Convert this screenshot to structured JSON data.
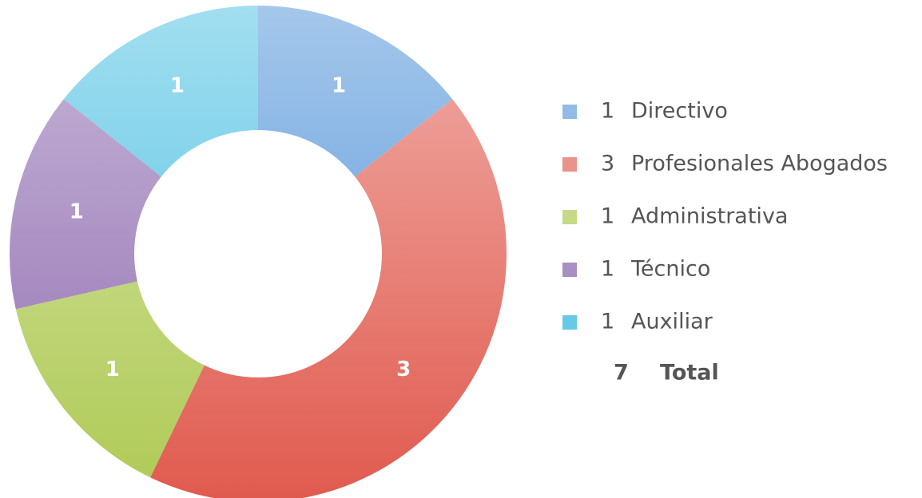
{
  "chart_data": {
    "type": "donut",
    "categories": [
      "Directivo",
      "Profesionales Abogados",
      "Administrativa",
      "Técnico",
      "Auxiliar"
    ],
    "values": [
      1,
      3,
      1,
      1,
      1
    ],
    "colors": [
      "#4a8fd6",
      "#e05a4e",
      "#afca55",
      "#8f6cb0",
      "#45bde0"
    ],
    "total": {
      "value": 7,
      "label": "Total"
    },
    "legend": "right"
  }
}
